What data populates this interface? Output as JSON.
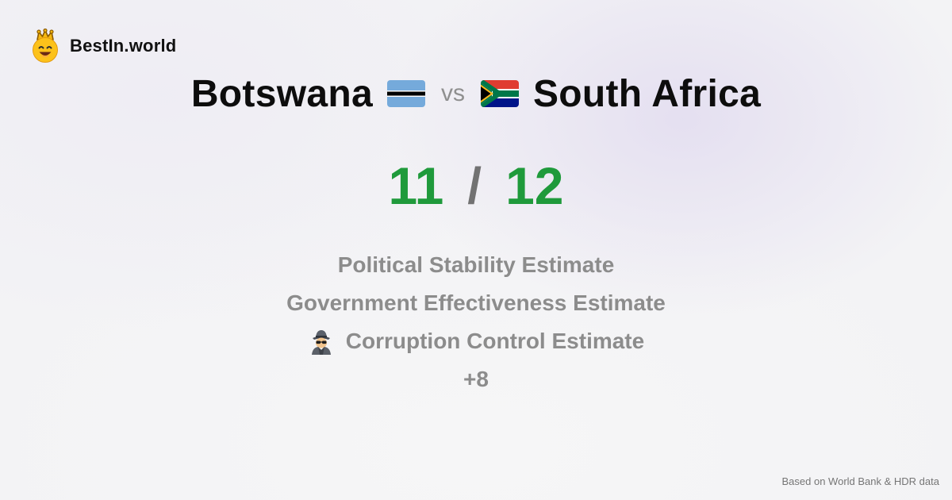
{
  "brand": {
    "name": "BestIn.world",
    "icon": "crown-smiley-icon"
  },
  "title": {
    "left_country": "Botswana",
    "left_flag": "botswana-flag-icon",
    "vs": "vs",
    "right_country": "South Africa",
    "right_flag": "south-africa-flag-icon"
  },
  "score": {
    "left": "11",
    "separator": "/",
    "right": "12"
  },
  "metrics": [
    {
      "label": "Political Stability Estimate",
      "icon": null
    },
    {
      "label": "Government Effectiveness Estimate",
      "icon": null
    },
    {
      "label": "Corruption Control Estimate",
      "icon": "detective-icon"
    },
    {
      "label": "+8",
      "icon": null
    }
  ],
  "footer": {
    "source": "Based on World Bank & HDR data"
  },
  "colors": {
    "score_green": "#1f9a3b",
    "muted_gray": "#8c8c8c",
    "background": "#f3f3f5"
  }
}
